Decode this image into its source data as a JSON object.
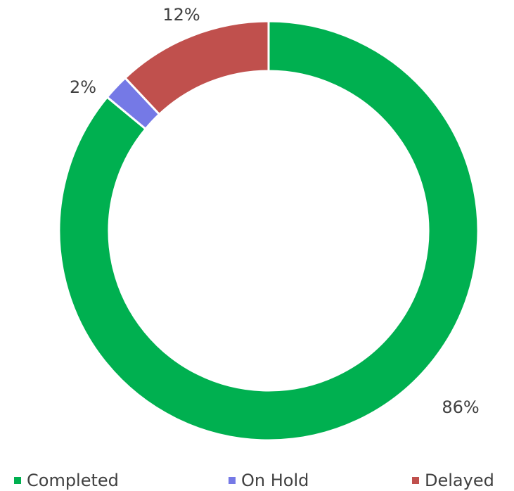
{
  "chart_data": {
    "type": "donut",
    "categories": [
      "Completed",
      "On Hold",
      "Delayed"
    ],
    "values": [
      86,
      2,
      12
    ],
    "value_labels": [
      "86%",
      "2%",
      "12%"
    ],
    "colors": [
      "#00b050",
      "#7579e6",
      "#c0504d"
    ],
    "legend": "bottom"
  }
}
